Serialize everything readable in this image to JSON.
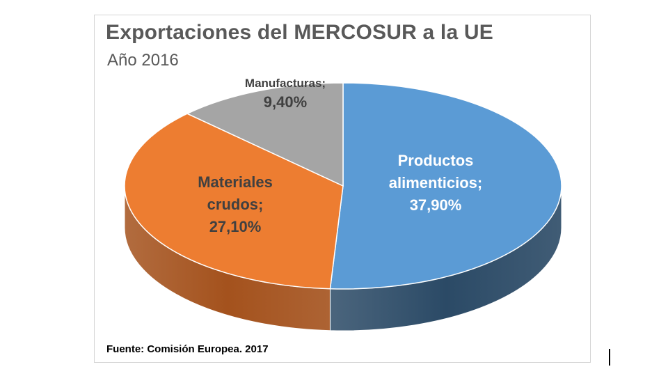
{
  "chart_data": {
    "type": "pie",
    "style": "3d",
    "title": "Exportaciones del MERCOSUR a la UE",
    "subtitle": "Año 2016",
    "slices": [
      {
        "name": "Productos alimenticios",
        "value": 37.9,
        "label_lines": [
          "Productos",
          "alimenticios;",
          "37,90%"
        ],
        "color": "#5b9bd5",
        "side_color": "#2b4a66",
        "label_color": "#ffffff"
      },
      {
        "name": "Materiales crudos",
        "value": 27.1,
        "label_lines": [
          "Materiales",
          "crudos;",
          "27,10%"
        ],
        "color": "#ed7d31",
        "side_color": "#a4521d",
        "label_color": "#404040"
      },
      {
        "name": "Manufacturas",
        "value": 9.4,
        "label_lines": [
          "Manufacturas;",
          "9,40%"
        ],
        "color": "#a5a5a5",
        "side_color": "#6e6e6e",
        "label_color": "#404040"
      }
    ]
  },
  "source": "Fuente: Comisión Europea. 2017"
}
